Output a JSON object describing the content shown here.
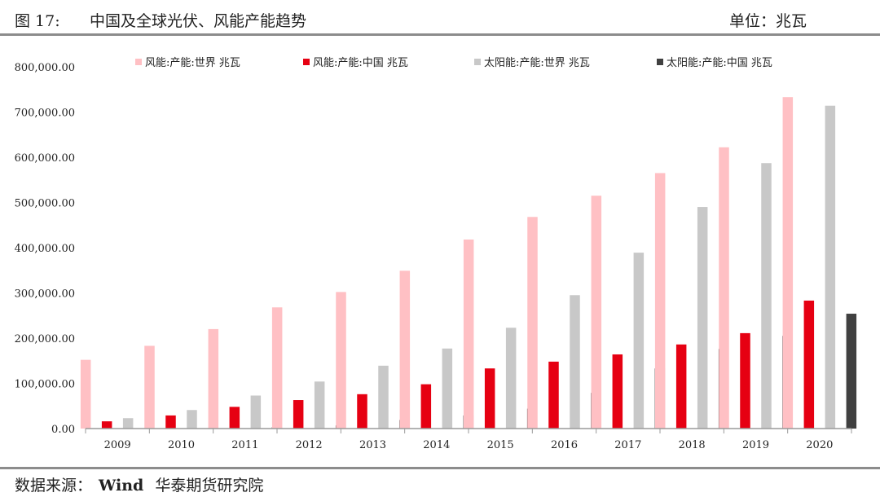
{
  "header": {
    "figure_label": "图 17:",
    "title": "中国及全球光伏、风能产能趋势",
    "unit": "单位：兆瓦"
  },
  "footer": {
    "source_label": "数据来源：",
    "source_name": "Wind",
    "organization": "华泰期货研究院"
  },
  "chart_data": {
    "type": "bar",
    "categories": [
      "2009",
      "2010",
      "2011",
      "2012",
      "2013",
      "2014",
      "2015",
      "2016",
      "2017",
      "2018",
      "2019",
      "2020"
    ],
    "series": [
      {
        "name": "风能:产能:世界 兆瓦",
        "color": "#ffc0c4",
        "values": [
          152000,
          183000,
          220000,
          268000,
          302000,
          349000,
          418000,
          468000,
          515000,
          565000,
          622000,
          733000
        ]
      },
      {
        "name": "风能:产能:中国 兆瓦",
        "color": "#e60012",
        "values": [
          16000,
          29000,
          48000,
          63000,
          76000,
          98000,
          133000,
          148000,
          164000,
          186000,
          211000,
          283000
        ]
      },
      {
        "name": "太阳能:产能:世界 兆瓦",
        "color": "#c8c8c8",
        "values": [
          23000,
          41000,
          73000,
          104000,
          139000,
          177000,
          223000,
          295000,
          389000,
          490000,
          587000,
          714000
        ]
      },
      {
        "name": "太阳能:产能:中国 兆瓦",
        "color": "#404040",
        "values": [
          1000,
          1000,
          3000,
          7000,
          19000,
          29000,
          44000,
          79000,
          133000,
          176000,
          205000,
          254000
        ]
      }
    ],
    "ylim": [
      0,
      800000
    ],
    "yticks": [
      "0.00",
      "100,000.00",
      "200,000.00",
      "300,000.00",
      "400,000.00",
      "500,000.00",
      "600,000.00",
      "700,000.00",
      "800,000.00"
    ],
    "legend_position": "top",
    "grid": false
  }
}
